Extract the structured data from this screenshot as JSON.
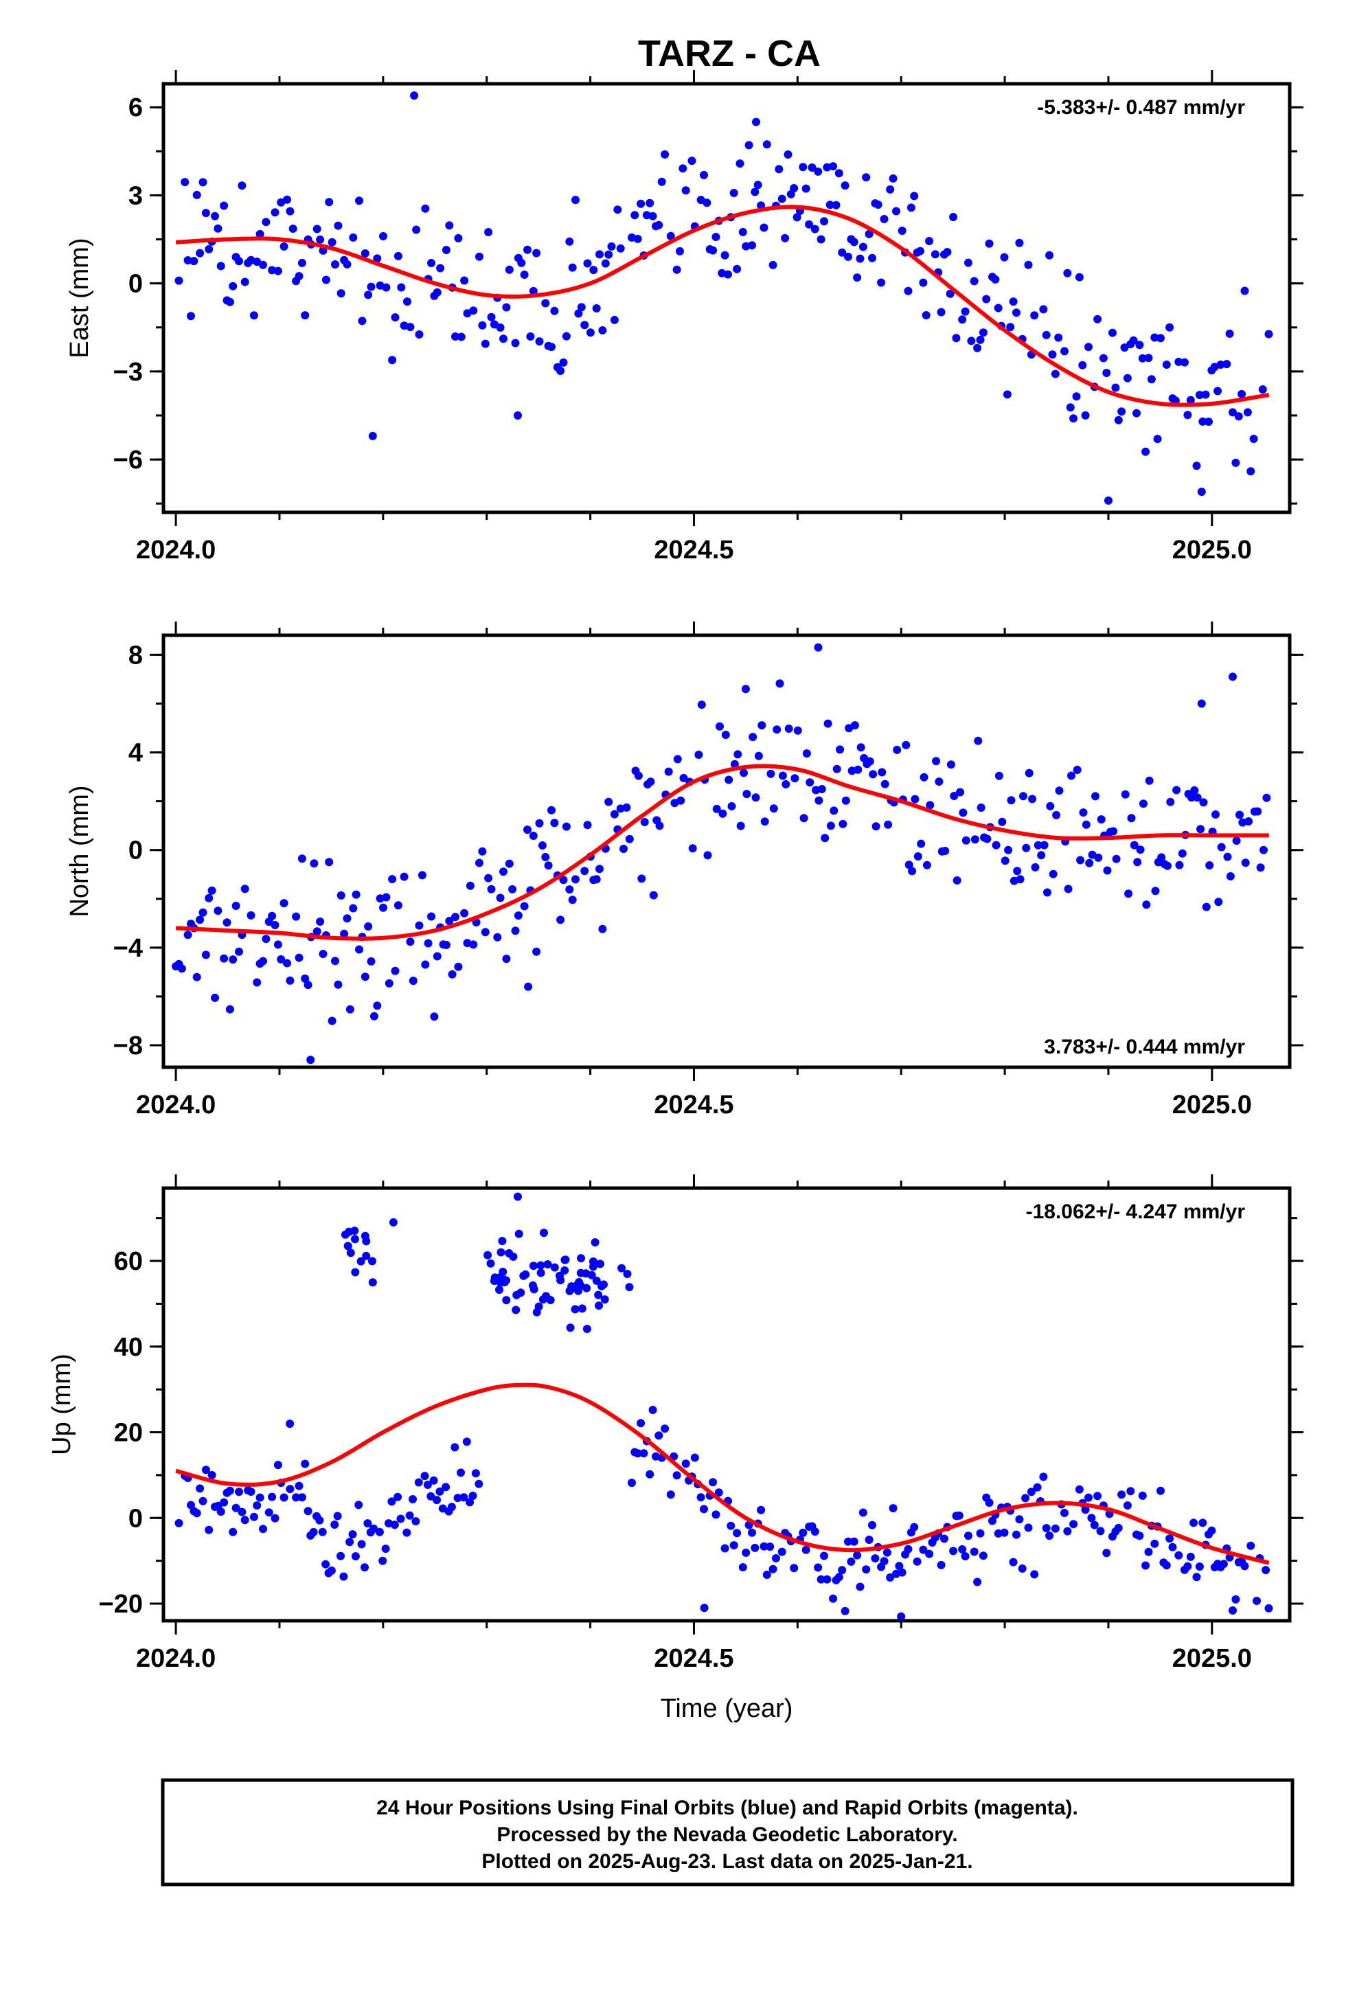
{
  "title": "TARZ - CA",
  "footer": {
    "line1": "24 Hour Positions Using Final Orbits (blue) and Rapid Orbits (magenta).",
    "line2": "Processed by the Nevada Geodetic Laboratory.",
    "line3": "Plotted on 2025-Aug-23. Last data on 2025-Jan-21."
  },
  "colors": {
    "points": "#0000ff",
    "fit": "#ff0000",
    "axis": "#000000"
  },
  "chart_data": [
    {
      "type": "scatter",
      "ylabel": "East (mm)",
      "xlabel": "",
      "xlim": [
        2023.988,
        2025.075
      ],
      "ylim": [
        -7.8,
        6.8
      ],
      "xticks": [
        {
          "v": 2024.0,
          "t": "2024.0"
        },
        {
          "v": 2024.5,
          "t": "2024.5"
        },
        {
          "v": 2025.0,
          "t": "2025.0"
        }
      ],
      "yticks": [
        {
          "v": 6,
          "t": "6"
        },
        {
          "v": 3,
          "t": "3"
        },
        {
          "v": 0,
          "t": "0"
        },
        {
          "v": -3,
          "t": "−3"
        },
        {
          "v": -6,
          "t": "−6"
        }
      ],
      "rate": "-5.383+/- 0.487 mm/yr",
      "rate_position": "top-right",
      "fit": {
        "x": [
          2024.0,
          2024.05,
          2024.1,
          2024.15,
          2024.2,
          2024.25,
          2024.3,
          2024.35,
          2024.4,
          2024.45,
          2024.5,
          2024.55,
          2024.6,
          2024.65,
          2024.7,
          2024.75,
          2024.8,
          2024.85,
          2024.9,
          2024.95,
          2025.0,
          2025.055
        ],
        "y": [
          1.4,
          1.5,
          1.5,
          1.2,
          0.6,
          0.0,
          -0.4,
          -0.4,
          0.0,
          0.9,
          1.8,
          2.4,
          2.6,
          2.2,
          1.2,
          -0.2,
          -1.6,
          -2.8,
          -3.7,
          -4.1,
          -4.1,
          -3.8
        ]
      },
      "segments": [
        {
          "x0": 2024.0,
          "x1": 2024.43,
          "fitOffset": 0.0,
          "spread": 1.3
        },
        {
          "x0": 2024.44,
          "x1": 2025.055,
          "fitOffset": 0.4,
          "spread": 1.3
        }
      ],
      "outliers": [
        [
          2024.23,
          6.4
        ],
        [
          2024.19,
          -5.2
        ],
        [
          2024.33,
          -4.5
        ],
        [
          2024.9,
          -7.4
        ],
        [
          2024.99,
          -7.1
        ],
        [
          2024.56,
          5.5
        ]
      ]
    },
    {
      "type": "scatter",
      "ylabel": "North (mm)",
      "xlabel": "",
      "xlim": [
        2023.988,
        2025.075
      ],
      "ylim": [
        -8.9,
        8.8
      ],
      "xticks": [
        {
          "v": 2024.0,
          "t": "2024.0"
        },
        {
          "v": 2024.5,
          "t": "2024.5"
        },
        {
          "v": 2025.0,
          "t": "2025.0"
        }
      ],
      "yticks": [
        {
          "v": 8,
          "t": "8"
        },
        {
          "v": 4,
          "t": "4"
        },
        {
          "v": 0,
          "t": "0"
        },
        {
          "v": -4,
          "t": "−4"
        },
        {
          "v": -8,
          "t": "−8"
        }
      ],
      "rate": "3.783+/- 0.444 mm/yr",
      "rate_position": "bottom-right",
      "fit": {
        "x": [
          2024.0,
          2024.05,
          2024.1,
          2024.15,
          2024.2,
          2024.25,
          2024.3,
          2024.35,
          2024.4,
          2024.45,
          2024.5,
          2024.55,
          2024.6,
          2024.65,
          2024.7,
          2024.75,
          2024.8,
          2024.85,
          2024.9,
          2024.95,
          2025.0,
          2025.055
        ],
        "y": [
          -3.2,
          -3.3,
          -3.4,
          -3.6,
          -3.6,
          -3.3,
          -2.6,
          -1.6,
          -0.2,
          1.4,
          2.8,
          3.4,
          3.3,
          2.6,
          2.0,
          1.3,
          0.8,
          0.5,
          0.5,
          0.6,
          0.6,
          0.6
        ]
      },
      "segments": [
        {
          "x0": 2024.0,
          "x1": 2025.055,
          "fitOffset": 0.0,
          "spread": 1.5
        }
      ],
      "outliers": [
        [
          2024.13,
          -8.6
        ],
        [
          2024.62,
          8.3
        ],
        [
          2025.02,
          7.1
        ],
        [
          2024.99,
          6.0
        ],
        [
          2024.34,
          -5.6
        ],
        [
          2024.55,
          6.6
        ]
      ]
    },
    {
      "type": "scatter",
      "ylabel": "Up (mm)",
      "xlabel": "Time (year)",
      "xlim": [
        2023.988,
        2025.075
      ],
      "ylim": [
        -24,
        77
      ],
      "xticks": [
        {
          "v": 2024.0,
          "t": "2024.0"
        },
        {
          "v": 2024.5,
          "t": "2024.5"
        },
        {
          "v": 2025.0,
          "t": "2025.0"
        }
      ],
      "yticks": [
        {
          "v": 60,
          "t": "60"
        },
        {
          "v": 40,
          "t": "40"
        },
        {
          "v": 20,
          "t": "20"
        },
        {
          "v": 0,
          "t": "0"
        },
        {
          "v": -20,
          "t": "−20"
        }
      ],
      "rate": "-18.062+/- 4.247 mm/yr",
      "rate_position": "top-right",
      "fit": {
        "x": [
          2024.0,
          2024.05,
          2024.1,
          2024.15,
          2024.2,
          2024.25,
          2024.3,
          2024.33,
          2024.36,
          2024.4,
          2024.45,
          2024.5,
          2024.55,
          2024.6,
          2024.65,
          2024.7,
          2024.75,
          2024.8,
          2024.85,
          2024.9,
          2024.95,
          2025.0,
          2025.055
        ],
        "y": [
          11,
          8,
          8.5,
          13,
          20,
          26,
          30,
          31,
          30.5,
          27,
          19,
          9,
          0,
          -5.5,
          -7.5,
          -6,
          -2,
          2,
          3.5,
          2,
          -2.5,
          -7,
          -10.5
        ]
      },
      "segments": [
        {
          "x0": 2024.0,
          "x1": 2024.13,
          "fitOffset": -5,
          "spread": 4.5
        },
        {
          "x0": 2024.13,
          "x1": 2024.295,
          "fitOffset": -20,
          "spread": 4.5
        },
        {
          "x0": 2024.44,
          "x1": 2025.055,
          "fitOffset": -3,
          "spread": 5
        }
      ],
      "clusters": [
        {
          "x0": 2024.16,
          "x1": 2024.19,
          "y": 64,
          "spread": 3,
          "n": 12
        },
        {
          "x0": 2024.3,
          "x1": 2024.44,
          "y": 56,
          "spread": 5,
          "n": 70
        }
      ],
      "outliers": [
        [
          2024.33,
          75
        ],
        [
          2024.21,
          69
        ],
        [
          2024.19,
          55
        ],
        [
          2024.11,
          22
        ],
        [
          2024.7,
          -23
        ],
        [
          2024.51,
          -21
        ]
      ]
    }
  ]
}
